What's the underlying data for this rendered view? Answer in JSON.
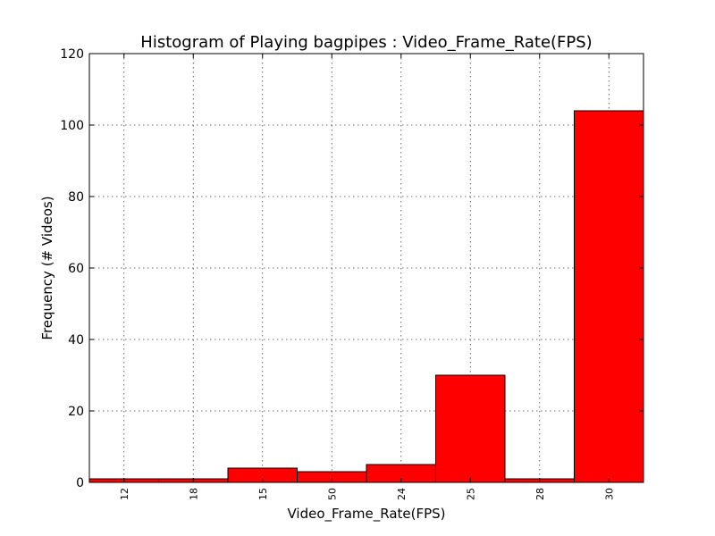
{
  "chart_data": {
    "type": "bar",
    "title": "Histogram of Playing bagpipes : Video_Frame_Rate(FPS)",
    "xlabel": "Video_Frame_Rate(FPS)",
    "ylabel": "Frequency (# Videos)",
    "categories": [
      "12",
      "18",
      "15",
      "50",
      "24",
      "25",
      "28",
      "30"
    ],
    "values": [
      1,
      1,
      4,
      3,
      5,
      30,
      1,
      104
    ],
    "ylim": [
      0,
      120
    ],
    "yticks": [
      0,
      20,
      40,
      60,
      80,
      100,
      120
    ],
    "grid": true,
    "bar_color": "#ff0000",
    "edge_color": "#000000"
  }
}
